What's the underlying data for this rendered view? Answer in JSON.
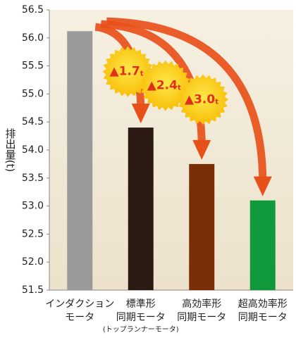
{
  "chart_data": {
    "type": "bar",
    "y_label": "排出量(t)",
    "categories": [
      [
        "インダクション",
        "モータ"
      ],
      [
        "標準形",
        "同期モータ"
      ],
      [
        "高効率形",
        "同期モータ"
      ],
      [
        "超高効率形",
        "同期モータ"
      ]
    ],
    "category_note": "(トップランナーモータ)",
    "values": [
      56.12,
      54.4,
      53.75,
      53.1
    ],
    "colors": [
      "#9a9a9a",
      "#2b1a14",
      "#7a2e08",
      "#119a3c"
    ],
    "ylim": [
      51.5,
      56.5
    ],
    "yticks": [
      51.5,
      {
        "value": 52,
        "label": "52.0"
      },
      52.5,
      {
        "value": 53,
        "label": "53.0"
      },
      53.5,
      {
        "value": 54,
        "label": "54.0"
      },
      54.5,
      {
        "value": 55,
        "label": "55.0"
      },
      55.5,
      {
        "value": 56,
        "label": "56.0"
      },
      56.5
    ],
    "annotations": [
      {
        "text": "▲1.7",
        "unit": "t"
      },
      {
        "text": "▲2.4",
        "unit": "t"
      },
      {
        "text": "▲3.0",
        "unit": "t"
      }
    ],
    "arrow_color": "#e8501a",
    "grid": false
  }
}
